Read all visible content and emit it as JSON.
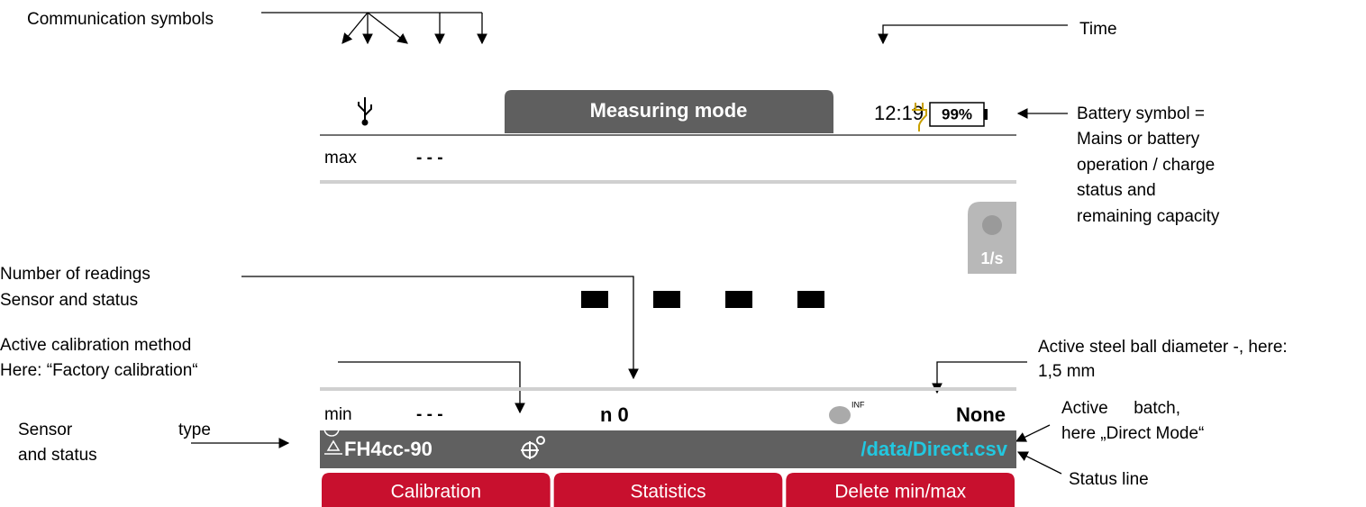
{
  "annotations": {
    "communication": "Communication symbols",
    "time": "Time",
    "battery": [
      "Battery symbol =",
      "Mains or battery",
      "operation / charge",
      "status and",
      "remaining capacity"
    ],
    "readings": [
      "Number of readings",
      "Sensor and status"
    ],
    "calibration": [
      "Active calibration method",
      "Here: “Factory calibration“"
    ],
    "ball": [
      "Active steel ball diameter -, here:",
      "1,5 mm"
    ],
    "sensor": [
      "Sensor",
      "type",
      "and status"
    ],
    "batch": [
      "Active",
      "batch,",
      "here „Direct Mode“"
    ],
    "status_line": "Status line"
  },
  "screen": {
    "title": "Measuring mode",
    "time": "12:19",
    "battery": "99%",
    "max_label": "max",
    "max_value": "- - -",
    "rate": "1/s",
    "min_label": "min",
    "min_value": "- - -",
    "count": "n 0",
    "ball_icon": "INF",
    "ball_value": "None",
    "sensor": "FH4cc-90",
    "batch": "/data/Direct.csv",
    "buttons": [
      "Calibration",
      "Statistics",
      "Delete min/max"
    ]
  }
}
